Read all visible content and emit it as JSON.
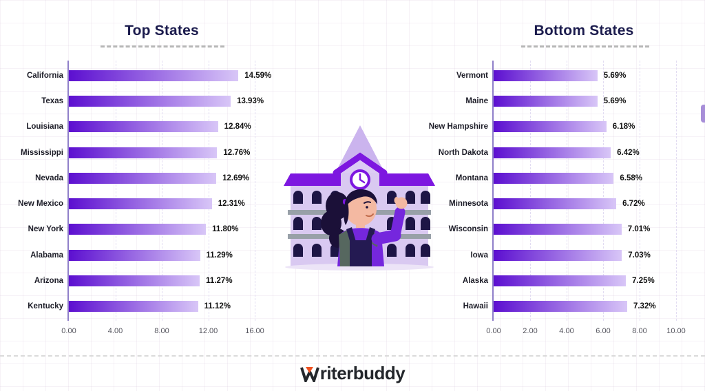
{
  "chart_data": [
    {
      "type": "bar",
      "orientation": "horizontal",
      "title": "Top States",
      "categories": [
        "California",
        "Texas",
        "Louisiana",
        "Mississippi",
        "Nevada",
        "New Mexico",
        "New York",
        "Alabama",
        "Arizona",
        "Kentucky"
      ],
      "values": [
        14.59,
        13.93,
        12.84,
        12.76,
        12.69,
        12.31,
        11.8,
        11.29,
        11.27,
        11.12
      ],
      "value_labels": [
        "14.59%",
        "13.93%",
        "12.84%",
        "12.76%",
        "12.69%",
        "12.31%",
        "11.80%",
        "11.29%",
        "11.27%",
        "11.12%"
      ],
      "xlim": [
        0,
        16
      ],
      "x_ticks": [
        "0.00",
        "4.00",
        "8.00",
        "12.00",
        "16.00"
      ],
      "grid": "vertical-dashed",
      "legend": "none"
    },
    {
      "type": "bar",
      "orientation": "horizontal",
      "title": "Bottom States",
      "categories": [
        "Vermont",
        "Maine",
        "New Hampshire",
        "North Dakota",
        "Montana",
        "Minnesota",
        "Wisconsin",
        "Iowa",
        "Alaska",
        "Hawaii"
      ],
      "values": [
        5.69,
        5.69,
        6.18,
        6.42,
        6.58,
        6.72,
        7.01,
        7.03,
        7.25,
        7.32
      ],
      "value_labels": [
        "5.69%",
        "5.69%",
        "6.18%",
        "6.42%",
        "6.58%",
        "6.72%",
        "7.01%",
        "7.03%",
        "7.25%",
        "7.32%"
      ],
      "xlim": [
        0,
        10
      ],
      "x_ticks": [
        "0.00",
        "2.00",
        "4.00",
        "6.00",
        "8.00",
        "10.00"
      ],
      "grid": "vertical-dashed",
      "legend": "none"
    }
  ],
  "footer": {
    "logo_full": "Writerbuddy",
    "logo_rest": "riterbuddy"
  },
  "colors": {
    "bar_gradient_start": "#5c0fd0",
    "bar_gradient_end": "#d8c6f7",
    "title_text": "#1b1b4d",
    "axis_line": "#8f7fc9",
    "grid_dash": "#e2dcf2",
    "label_text": "#1d1d28",
    "value_text": "#111111",
    "tick_text": "#55555e",
    "logo_text": "#23262b",
    "logo_accent": "#ee5222",
    "illustration_purple": "#7d17e0",
    "illustration_lavender": "#d9c9f1"
  }
}
